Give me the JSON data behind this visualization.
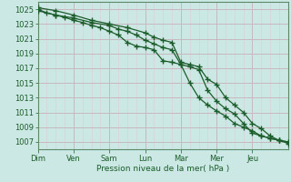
{
  "background_color": "#cce8e4",
  "plot_bg_color": "#cce8e4",
  "grid_major_color": "#c8b8c0",
  "grid_minor_color": "#d8ccd4",
  "line_color": "#1a5c2a",
  "xlabel": "Pression niveau de la mer( hPa )",
  "ylim": [
    1006.0,
    1026.0
  ],
  "yticks": [
    1007,
    1009,
    1011,
    1013,
    1015,
    1017,
    1019,
    1021,
    1023,
    1025
  ],
  "day_labels": [
    "Dim",
    "Ven",
    "Sam",
    "Lun",
    "Mar",
    "Mer",
    "Jeu"
  ],
  "day_positions": [
    0,
    2,
    4,
    6,
    8,
    10,
    12
  ],
  "xlim": [
    0,
    14
  ],
  "series1_x": [
    0,
    0.5,
    1,
    1.5,
    2,
    2.5,
    3,
    3.5,
    4,
    4.5,
    5,
    5.5,
    6,
    6.5,
    7,
    7.5,
    8,
    8.5,
    9,
    9.5,
    10,
    10.5,
    11,
    11.5,
    12,
    12.5,
    13,
    13.5,
    14
  ],
  "series1_y": [
    1025.0,
    1024.5,
    1024.2,
    1023.9,
    1023.5,
    1023.2,
    1022.8,
    1022.5,
    1022.0,
    1021.5,
    1020.5,
    1020.0,
    1019.8,
    1019.5,
    1018.0,
    1017.8,
    1017.5,
    1015.0,
    1013.0,
    1012.0,
    1011.2,
    1010.5,
    1009.5,
    1009.0,
    1008.5,
    1007.8,
    1007.5,
    1007.2,
    1007.0
  ],
  "series2_x": [
    0,
    1,
    2,
    3,
    4,
    5,
    6,
    6.5,
    7,
    7.5,
    8,
    8.5,
    9,
    9.5,
    10,
    10.5,
    11,
    11.5,
    12,
    12.5,
    13,
    13.5,
    14
  ],
  "series2_y": [
    1025.2,
    1024.8,
    1024.2,
    1023.5,
    1023.0,
    1022.5,
    1021.8,
    1021.2,
    1020.8,
    1020.5,
    1017.8,
    1017.5,
    1017.2,
    1015.5,
    1014.8,
    1013.0,
    1012.0,
    1011.0,
    1009.5,
    1008.8,
    1007.8,
    1007.2,
    1006.8
  ],
  "series3_x": [
    0,
    1,
    2,
    3,
    4,
    4.5,
    5,
    5.5,
    6,
    6.5,
    7,
    7.5,
    8,
    8.5,
    9,
    9.5,
    10,
    10.5,
    11,
    11.5,
    12,
    12.5,
    13,
    13.5,
    14
  ],
  "series3_y": [
    1024.8,
    1024.2,
    1023.8,
    1023.2,
    1022.8,
    1022.3,
    1022.0,
    1021.5,
    1020.8,
    1020.3,
    1019.8,
    1019.5,
    1017.5,
    1017.2,
    1016.8,
    1014.0,
    1012.5,
    1011.5,
    1010.8,
    1009.5,
    1008.2,
    1007.8,
    1007.5,
    1007.2,
    1007.0
  ]
}
